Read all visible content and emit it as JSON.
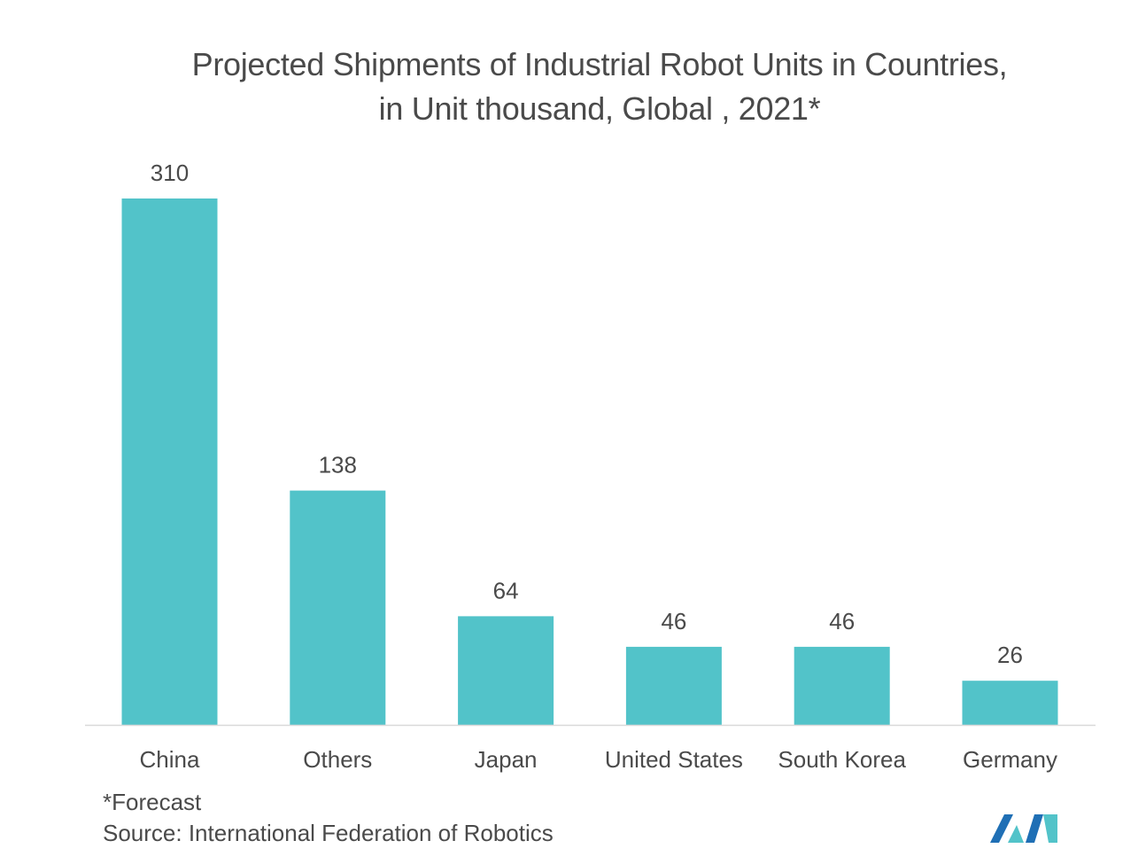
{
  "header": {
    "title_line_1": "Projected Shipments of Industrial Robot Units in Countries,",
    "title_line_2": "in Unit thousand, Global , 2021*"
  },
  "footer": {
    "footnote": "*Forecast",
    "source": "Source: International Federation of Robotics"
  },
  "brand": {
    "logo_icon": "mordor-intelligence-logo-icon",
    "logo_colors": [
      "#1f6fb5",
      "#52c3c9"
    ]
  },
  "chart_data": {
    "type": "bar",
    "title": "Projected Shipments of Industrial Robot Units in Countries, in Unit thousand, Global , 2021*",
    "xlabel": "",
    "ylabel": "",
    "categories": [
      "China",
      "Others",
      "Japan",
      "United States",
      "South Korea",
      "Germany"
    ],
    "values": [
      310,
      138,
      64,
      46,
      46,
      26
    ],
    "data_labels": [
      "310",
      "138",
      "64",
      "46",
      "46",
      "26"
    ],
    "bar_color": "#52c3c9",
    "ylim": [
      0,
      310
    ],
    "grid": false,
    "legend": "none",
    "axis_visible": false
  }
}
